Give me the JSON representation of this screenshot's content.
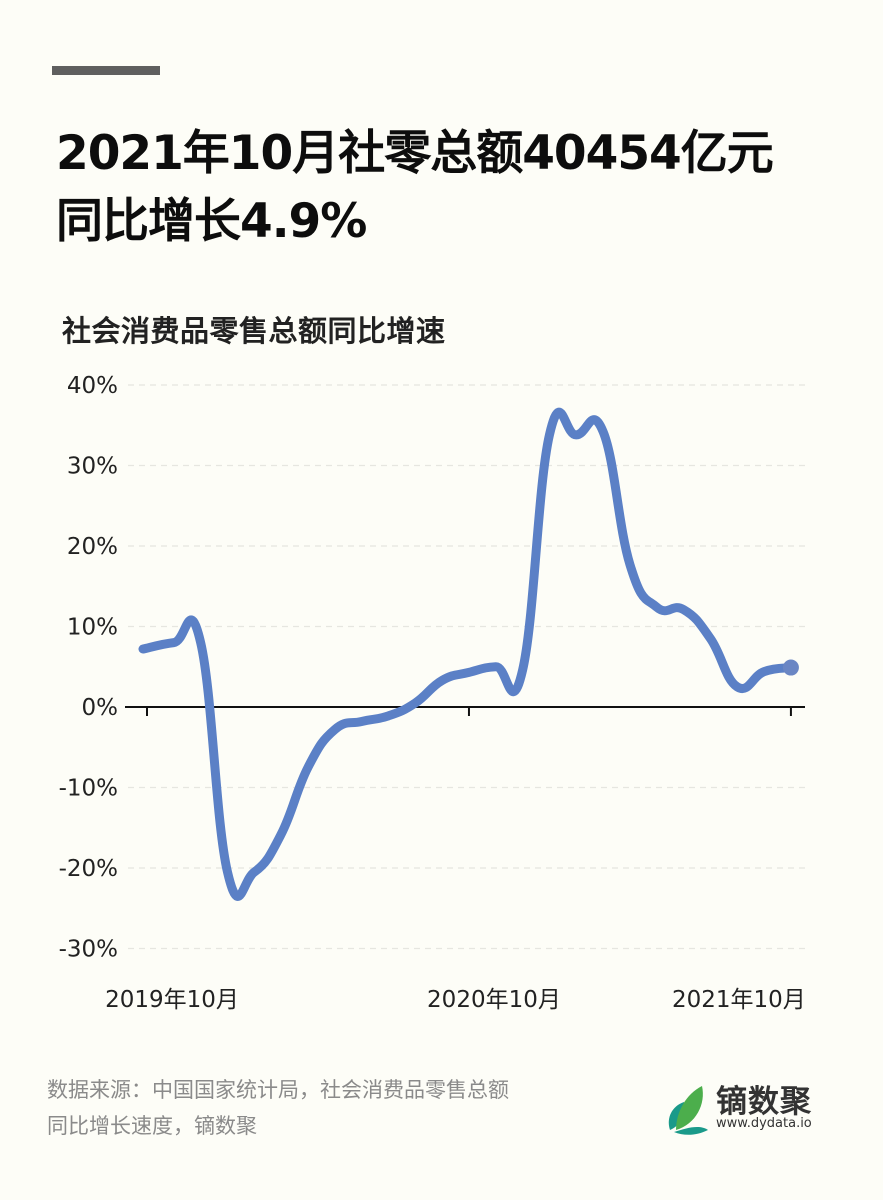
{
  "header": {
    "title_line1": "2021年10月社零总额40454亿元",
    "title_line2": "同比增长4.9%",
    "subtitle": "社会消费品零售总额同比增速"
  },
  "footer": {
    "source_line1": "数据来源：中国国家统计局，社会消费品零售总额",
    "source_line2": "同比增长速度，镝数聚"
  },
  "logo": {
    "name": "镝数聚",
    "url": "www.dydata.io",
    "colors": [
      "#1a9a8a",
      "#4cae4c",
      "#8cc63f"
    ]
  },
  "colors": {
    "background": "#fdfdf7",
    "line": "#5b80c6",
    "end_marker": "#6a86c4",
    "grid": "#e6e6e0",
    "axis": "#111111"
  },
  "chart_data": {
    "type": "line",
    "title": "社会消费品零售总额同比增速",
    "xlabel": "",
    "ylabel": "",
    "ylim": [
      -30,
      40
    ],
    "yticks": [
      40,
      30,
      20,
      10,
      0,
      -10,
      -20,
      -30
    ],
    "ytick_labels": [
      "40%",
      "30%",
      "20%",
      "10%",
      "0%",
      "-10%",
      "-20%",
      "-30%"
    ],
    "xtick_labels": [
      "2019年10月",
      "2020年10月",
      "2021年10月"
    ],
    "xtick_index": [
      0,
      12,
      24
    ],
    "grid": true,
    "legend": false,
    "x": [
      "2019-10",
      "2019-11",
      "2019-12",
      "2020-01",
      "2020-02",
      "2020-03",
      "2020-04",
      "2020-05",
      "2020-06",
      "2020-07",
      "2020-08",
      "2020-09",
      "2020-10",
      "2020-11",
      "2020-12",
      "2021-01",
      "2021-02",
      "2021-03",
      "2021-04",
      "2021-05",
      "2021-06",
      "2021-07",
      "2021-08",
      "2021-09",
      "2021-10"
    ],
    "series": [
      {
        "name": "社会消费品零售总额同比增速(%)",
        "values": [
          7.2,
          8.0,
          8.0,
          -20.5,
          -20.5,
          -15.8,
          -7.5,
          -2.8,
          -1.8,
          -1.1,
          0.5,
          3.3,
          4.3,
          5.0,
          4.6,
          33.8,
          33.8,
          34.2,
          17.7,
          12.4,
          12.1,
          8.5,
          2.5,
          4.4,
          4.9
        ]
      }
    ]
  }
}
